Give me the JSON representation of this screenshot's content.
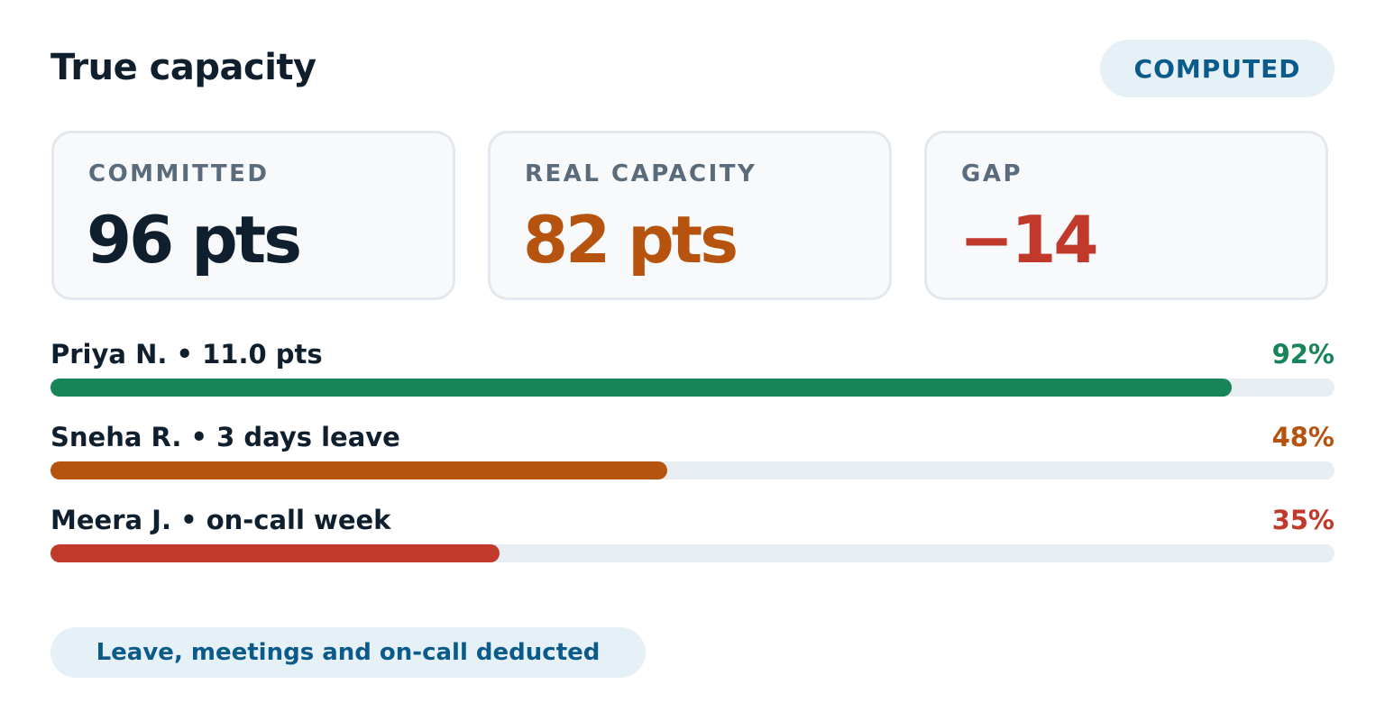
{
  "header": {
    "title": "True capacity",
    "badge": "COMPUTED"
  },
  "stats": [
    {
      "label": "COMMITTED",
      "value": "96 pts"
    },
    {
      "label": "REAL CAPACITY",
      "value": "82 pts"
    },
    {
      "label": "GAP",
      "value": "−14"
    }
  ],
  "members": {
    "xlim": [
      0,
      100
    ],
    "items": [
      {
        "label": "Priya N. • 11.0 pts",
        "value": 92,
        "value_label": "92%",
        "color": "#17845a"
      },
      {
        "label": "Sneha R. • 3 days leave",
        "value": 48,
        "value_label": "48%",
        "color": "#b5530f"
      },
      {
        "label": "Meera J. • on-call week",
        "value": 35,
        "value_label": "35%",
        "color": "#c0392b"
      }
    ]
  },
  "footer": {
    "note": "Leave, meetings and on-call deducted"
  }
}
